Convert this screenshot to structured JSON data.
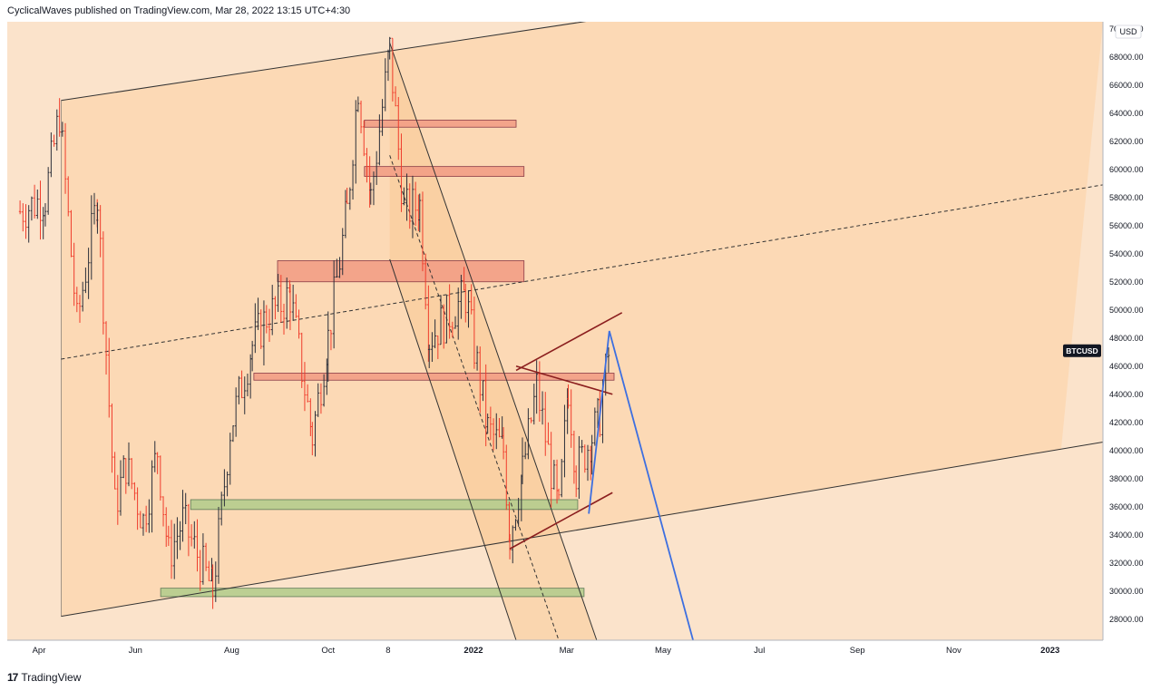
{
  "header": {
    "publish_text": "CyclicalWaves published on TradingView.com, Mar 28, 2022 13:15 UTC+4:30"
  },
  "footer": {
    "logo_mark": "17",
    "logo_text": "TradingView"
  },
  "chart_data": {
    "type": "candlestick",
    "symbol": "BTCUSD",
    "currency_label": "USD",
    "price_axis": {
      "range": [
        26500,
        70500
      ],
      "ticks": [
        28000,
        30000,
        32000,
        34000,
        36000,
        38000,
        40000,
        42000,
        44000,
        46000,
        48000,
        50000,
        52000,
        54000,
        56000,
        58000,
        60000,
        62000,
        64000,
        66000,
        68000,
        70000
      ],
      "tick_labels": [
        "28000.00",
        "30000.00",
        "32000.00",
        "34000.00",
        "36000.00",
        "38000.00",
        "40000.00",
        "42000.00",
        "44000.00",
        "46000.00",
        "48000.00",
        "50000.00",
        "52000.00",
        "54000.00",
        "56000.00",
        "58000.00",
        "60000.00",
        "62000.00",
        "64000.00",
        "66000.00",
        "68000.00",
        "70000.00"
      ]
    },
    "time_axis": {
      "tick_labels": [
        "Apr",
        "Jun",
        "Aug",
        "Oct",
        "8",
        "2022",
        "Mar",
        "May",
        "Jul",
        "Sep",
        "Nov",
        "2023"
      ]
    },
    "last_price_badge": {
      "label": "BTCUSD",
      "price": 47100
    },
    "price_path": [
      [
        "2021-03-20",
        57000
      ],
      [
        "2021-04-05",
        58000
      ],
      [
        "2021-04-14",
        64000
      ],
      [
        "2021-04-25",
        49000
      ],
      [
        "2021-05-08",
        58000
      ],
      [
        "2021-05-19",
        36000
      ],
      [
        "2021-05-26",
        39000
      ],
      [
        "2021-06-06",
        35000
      ],
      [
        "2021-06-15",
        40000
      ],
      [
        "2021-06-22",
        32500
      ],
      [
        "2021-07-01",
        35000
      ],
      [
        "2021-07-20",
        30000
      ],
      [
        "2021-07-31",
        41500
      ],
      [
        "2021-08-14",
        47500
      ],
      [
        "2021-08-23",
        49500
      ],
      [
        "2021-09-07",
        51000
      ],
      [
        "2021-09-21",
        41000
      ],
      [
        "2021-10-01",
        48000
      ],
      [
        "2021-10-13",
        57000
      ],
      [
        "2021-10-20",
        66000
      ],
      [
        "2021-10-28",
        58000
      ],
      [
        "2021-11-09",
        68500
      ],
      [
        "2021-11-18",
        57000
      ],
      [
        "2021-11-28",
        57500
      ],
      [
        "2021-12-04",
        48000
      ],
      [
        "2021-12-27",
        51000
      ],
      [
        "2022-01-10",
        41500
      ],
      [
        "2022-01-20",
        40000
      ],
      [
        "2022-01-24",
        34000
      ],
      [
        "2022-02-01",
        38500
      ],
      [
        "2022-02-10",
        44500
      ],
      [
        "2022-02-24",
        35500
      ],
      [
        "2022-03-02",
        44500
      ],
      [
        "2022-03-07",
        38500
      ],
      [
        "2022-03-17",
        41000
      ],
      [
        "2022-03-22",
        42500
      ],
      [
        "2022-03-28",
        47100
      ]
    ],
    "zones": [
      {
        "from": "2021-10-24",
        "to": "2022-01-28",
        "low": 63000,
        "high": 63500,
        "kind": "resistance"
      },
      {
        "from": "2021-10-24",
        "to": "2022-02-02",
        "low": 59500,
        "high": 60200,
        "kind": "resistance"
      },
      {
        "from": "2021-08-30",
        "to": "2022-02-02",
        "low": 52000,
        "high": 53500,
        "kind": "resistance"
      },
      {
        "from": "2021-08-15",
        "to": "2022-03-31",
        "low": 45000,
        "high": 45500,
        "kind": "resistance"
      },
      {
        "from": "2021-07-06",
        "to": "2022-03-08",
        "low": 35800,
        "high": 36500,
        "kind": "support"
      },
      {
        "from": "2021-06-17",
        "to": "2022-03-12",
        "low": 29600,
        "high": 30200,
        "kind": "support"
      }
    ],
    "channel": {
      "upper_start": [
        "2021-04-15",
        64900
      ],
      "upper_end": [
        "2022-04-10",
        71000
      ],
      "lower_start": [
        "2021-04-15",
        28200
      ],
      "lower_end": [
        "2023-01-08",
        40100
      ],
      "mid_start": [
        "2021-04-15",
        46500
      ],
      "mid_end": [
        "2023-01-08",
        58400
      ]
    },
    "down_channel": {
      "upper_start": [
        "2021-11-09",
        69000
      ],
      "upper_end": [
        "2022-03-20",
        26500
      ],
      "lower_start": [
        "2021-11-09",
        53600
      ],
      "lower_end": [
        "2022-01-28",
        26500
      ],
      "mid_start": [
        "2021-11-09",
        61000
      ],
      "mid_end": [
        "2022-02-24",
        26500
      ]
    },
    "wedge": {
      "upper": [
        [
          "2022-01-28",
          45700
        ],
        [
          "2022-04-05",
          49800
        ]
      ],
      "lower": [
        [
          "2022-01-24",
          33000
        ],
        [
          "2022-03-30",
          37000
        ]
      ],
      "cross": [
        [
          "2022-01-28",
          46000
        ],
        [
          "2022-03-30",
          44000
        ]
      ]
    },
    "projection": [
      [
        "2022-03-15",
        35500
      ],
      [
        "2022-03-28",
        48500
      ],
      [
        "2022-05-20",
        26500
      ]
    ]
  },
  "colors": {
    "up": "#2a2e39",
    "down": "#ef3d2c",
    "channel_fill": "#fbd7b1",
    "resistance": "#f39f86",
    "resistance_border": "#7d2b3a",
    "support": "#b6cd8e",
    "support_border": "#4f6f4d",
    "projection": "#3d6fe0",
    "wedge": "#8b1e1e",
    "badge": "#131722"
  }
}
